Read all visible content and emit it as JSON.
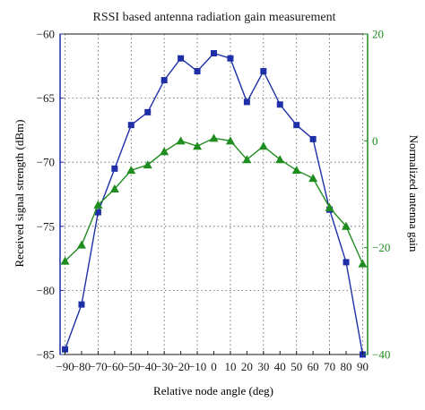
{
  "chart_data": {
    "type": "line",
    "title": "RSSI based antenna radiation gain measurement",
    "xlabel": "Relative node angle (deg)",
    "ylabel": "Received signal strength (dBm)",
    "y2label": "Normalized antenna gain",
    "xlim": [
      -93,
      93
    ],
    "ylim": [
      -85,
      -60
    ],
    "y2lim": [
      -40,
      20
    ],
    "xticks": [
      -90,
      -70,
      -50,
      -30,
      -10,
      10,
      30,
      50,
      70,
      90
    ],
    "xtick_labels": [
      "−90",
      "−80",
      "−70",
      "−60",
      "−50",
      "−40",
      "−30",
      "−20",
      "−10",
      "0",
      "10",
      "20",
      "30",
      "40",
      "50",
      "60",
      "70",
      "80",
      "90"
    ],
    "xtick_values": [
      -90,
      -80,
      -70,
      -60,
      -50,
      -40,
      -30,
      -20,
      -10,
      0,
      10,
      20,
      30,
      40,
      50,
      60,
      70,
      80,
      90
    ],
    "yticks": [
      -85,
      -80,
      -75,
      -70,
      -65,
      -60
    ],
    "ytick_labels": [
      "−85",
      "−80",
      "−75",
      "−70",
      "−65",
      "−60"
    ],
    "y2ticks": [
      -40,
      -20,
      0,
      20
    ],
    "y2tick_labels": [
      "−40",
      "−20",
      "0",
      "20"
    ],
    "grid": true,
    "colors": {
      "rssi": "#1f2fa8",
      "gain": "#1e8c1e",
      "grid": "#555555",
      "text": "#1a1a1a"
    },
    "series": [
      {
        "axis": "left",
        "marker": "square",
        "x": [
          -90,
          -80,
          -70,
          -60,
          -50,
          -40,
          -30,
          -20,
          -10,
          0,
          10,
          20,
          30,
          40,
          50,
          60,
          70,
          80,
          90
        ],
        "values": [
          -84.6,
          -81.1,
          -73.9,
          -70.5,
          -67.1,
          -66.1,
          -63.6,
          -61.9,
          -62.9,
          -61.5,
          -61.9,
          -65.3,
          -62.9,
          -65.5,
          -67.1,
          -68.2,
          -73.7,
          -77.8,
          -85
        ]
      },
      {
        "axis": "right",
        "marker": "triangle",
        "x": [
          -90,
          -80,
          -70,
          -60,
          -50,
          -40,
          -30,
          -20,
          -10,
          0,
          10,
          20,
          30,
          40,
          50,
          60,
          70,
          80,
          90
        ],
        "values": [
          -22.5,
          -19.5,
          -12,
          -9,
          -5.5,
          -4.5,
          -2,
          0,
          -1,
          0.5,
          0,
          -3.5,
          -1,
          -3.5,
          -5.5,
          -7,
          -12.5,
          -16,
          -23
        ]
      }
    ]
  }
}
